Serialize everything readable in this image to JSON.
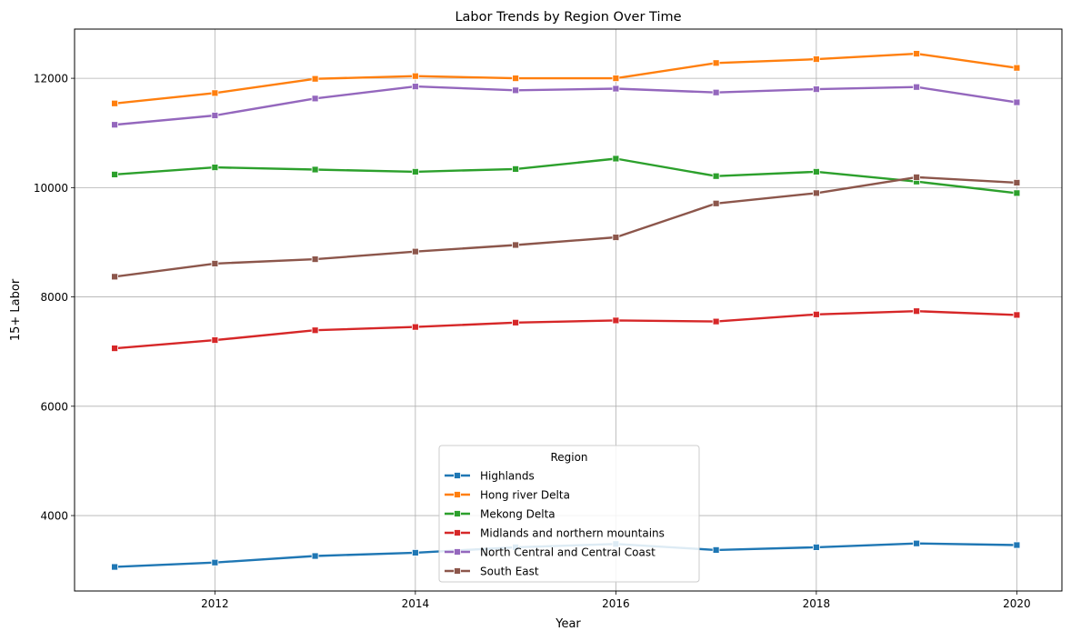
{
  "chart_data": {
    "type": "line",
    "title": "Labor Trends by Region Over Time",
    "xlabel": "Year",
    "ylabel": "15+ Labor",
    "x": [
      2011,
      2012,
      2013,
      2014,
      2015,
      2016,
      2017,
      2018,
      2019,
      2020
    ],
    "xlim": [
      2010.6,
      2020.45
    ],
    "ylim": [
      2620,
      12900
    ],
    "xticks": [
      2012,
      2014,
      2016,
      2018,
      2020
    ],
    "yticks": [
      4000,
      6000,
      8000,
      10000,
      12000
    ],
    "grid": true,
    "marker": "square",
    "legend": {
      "title": "Region",
      "placement": "lower-center"
    },
    "series": [
      {
        "name": "Highlands",
        "color": "#1f77b4",
        "values": [
          3060,
          3140,
          3260,
          3320,
          3420,
          3480,
          3370,
          3420,
          3490,
          3460
        ]
      },
      {
        "name": "Hong river Delta",
        "color": "#ff7f0e",
        "values": [
          11540,
          11730,
          11990,
          12040,
          12000,
          12000,
          12280,
          12350,
          12450,
          12190
        ]
      },
      {
        "name": "Mekong Delta",
        "color": "#2ca02c",
        "values": [
          10240,
          10370,
          10330,
          10290,
          10340,
          10530,
          10210,
          10290,
          10110,
          9900
        ]
      },
      {
        "name": "Midlands and northern mountains",
        "color": "#d62728",
        "values": [
          7060,
          7210,
          7390,
          7450,
          7530,
          7570,
          7550,
          7680,
          7740,
          7670
        ]
      },
      {
        "name": "North Central and Central Coast",
        "color": "#9467bd",
        "values": [
          11150,
          11320,
          11630,
          11850,
          11780,
          11810,
          11740,
          11800,
          11840,
          11560
        ]
      },
      {
        "name": "South East",
        "color": "#8c564b",
        "values": [
          8370,
          8610,
          8690,
          8830,
          8950,
          9090,
          9710,
          9900,
          10190,
          10090
        ]
      }
    ]
  }
}
